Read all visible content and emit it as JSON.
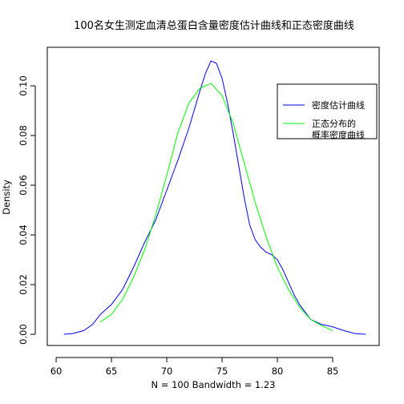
{
  "chart_data": {
    "type": "line",
    "title": "100名女生测定血清总蛋白含量密度估计曲线和正态密度曲线",
    "xlabel": "N = 100   Bandwidth = 1.23",
    "ylabel": "Density",
    "xlim": [
      59.2,
      89.2
    ],
    "ylim": [
      -0.0045,
      0.1155
    ],
    "x_ticks": [
      60,
      65,
      70,
      75,
      80,
      85
    ],
    "x_tick_labels": [
      "60",
      "65",
      "70",
      "75",
      "80",
      "85"
    ],
    "y_ticks": [
      0.0,
      0.02,
      0.04,
      0.06,
      0.08,
      0.1
    ],
    "y_tick_labels": [
      "0.00",
      "0.02",
      "0.04",
      "0.06",
      "0.08",
      "0.10"
    ],
    "grid": false,
    "legend": {
      "position": "top-right",
      "entries": [
        {
          "series": 0,
          "lines": [
            "密度估计曲线"
          ]
        },
        {
          "series": 1,
          "lines": [
            "正态分布的",
            "概率密度曲线"
          ]
        }
      ]
    },
    "series": [
      {
        "color": "#0000ff",
        "points": [
          [
            60.7,
            0.0
          ],
          [
            61.5,
            0.0003
          ],
          [
            62.5,
            0.0015
          ],
          [
            63.3,
            0.004
          ],
          [
            64.0,
            0.008
          ],
          [
            65.0,
            0.012
          ],
          [
            66.0,
            0.018
          ],
          [
            67.0,
            0.027
          ],
          [
            68.0,
            0.037
          ],
          [
            69.0,
            0.046
          ],
          [
            70.0,
            0.058
          ],
          [
            71.0,
            0.07
          ],
          [
            72.0,
            0.083
          ],
          [
            73.0,
            0.098
          ],
          [
            73.5,
            0.105
          ],
          [
            74.0,
            0.11
          ],
          [
            74.5,
            0.109
          ],
          [
            75.0,
            0.103
          ],
          [
            75.5,
            0.093
          ],
          [
            76.0,
            0.081
          ],
          [
            76.5,
            0.068
          ],
          [
            77.0,
            0.055
          ],
          [
            77.5,
            0.044
          ],
          [
            78.0,
            0.038
          ],
          [
            78.5,
            0.035
          ],
          [
            79.0,
            0.033
          ],
          [
            79.5,
            0.032
          ],
          [
            80.0,
            0.03
          ],
          [
            80.5,
            0.026
          ],
          [
            81.0,
            0.021
          ],
          [
            81.5,
            0.016
          ],
          [
            82.0,
            0.012
          ],
          [
            83.0,
            0.006
          ],
          [
            84.0,
            0.004
          ],
          [
            85.0,
            0.003
          ],
          [
            86.0,
            0.0015
          ],
          [
            87.0,
            0.0003
          ],
          [
            88.0,
            0.0
          ]
        ]
      },
      {
        "color": "#00ff00",
        "points": [
          [
            64.0,
            0.005
          ],
          [
            65.0,
            0.008
          ],
          [
            66.0,
            0.014
          ],
          [
            67.0,
            0.023
          ],
          [
            68.0,
            0.034
          ],
          [
            69.0,
            0.048
          ],
          [
            70.0,
            0.064
          ],
          [
            71.0,
            0.081
          ],
          [
            72.0,
            0.093
          ],
          [
            73.0,
            0.099
          ],
          [
            74.0,
            0.101
          ],
          [
            75.0,
            0.096
          ],
          [
            76.0,
            0.085
          ],
          [
            77.0,
            0.069
          ],
          [
            78.0,
            0.053
          ],
          [
            79.0,
            0.039
          ],
          [
            80.0,
            0.027
          ],
          [
            81.0,
            0.018
          ],
          [
            82.0,
            0.011
          ],
          [
            83.0,
            0.006
          ],
          [
            84.0,
            0.0035
          ],
          [
            85.0,
            0.0015
          ]
        ]
      }
    ]
  }
}
